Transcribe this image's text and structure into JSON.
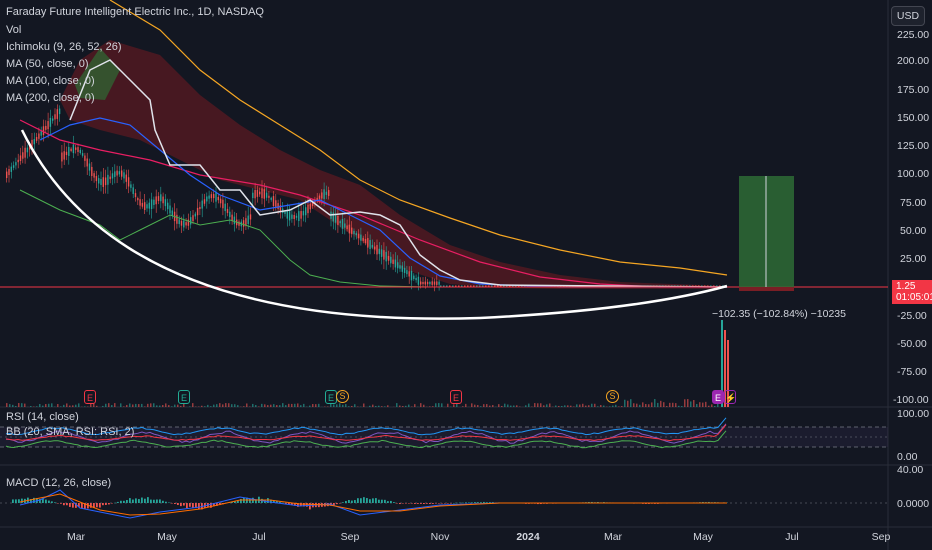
{
  "symbol": {
    "title": "Faraday Future Intelligent Electric Inc., 1D, NASDAQ"
  },
  "indicators": {
    "vol": "Vol",
    "ichimoku": "Ichimoku (9, 26, 52, 26)",
    "ma50": "MA (50, close, 0)",
    "ma100": "MA (100, close, 0)",
    "ma200": "MA (200, close, 0)"
  },
  "currency_button": "USD",
  "price_axis": [
    "225.00",
    "200.00",
    "175.00",
    "150.00",
    "125.00",
    "100.00",
    "75.00",
    "50.00",
    "25.00",
    "-25.00",
    "-50.00",
    "-75.00",
    "-100.00"
  ],
  "last_price": {
    "value": "1.25",
    "countdown": "01:05:01"
  },
  "measure_label": "−102.35 (−102.84%) −10235",
  "events": [
    {
      "type": "E",
      "color": "#f23645"
    },
    {
      "type": "E",
      "color": "#22ab94"
    },
    {
      "type": "E",
      "color": "#22ab94"
    },
    {
      "type": "S",
      "color": "#f5a623"
    },
    {
      "type": "E",
      "color": "#f23645"
    },
    {
      "type": "S",
      "color": "#f5a623"
    },
    {
      "type": "E",
      "color": "#9c27b0"
    },
    {
      "type": "⚡",
      "color": "#9c27b0"
    }
  ],
  "rsi_pane": {
    "title": "RSI (14, close)",
    "bb_title": "BB (20, SMA, RSI: RSI, 2)",
    "axis": [
      "100.00",
      "0.00"
    ]
  },
  "macd_pane": {
    "title": "MACD (12, 26, close)",
    "axis": [
      "40.00",
      "0.0000"
    ]
  },
  "time_axis": [
    "Mar",
    "May",
    "Jul",
    "Sep",
    "Nov",
    "2024",
    "Mar",
    "May",
    "Jul",
    "Sep"
  ],
  "colors": {
    "background": "#131722",
    "price_line": "#f23645",
    "up": "#26a69a",
    "down": "#ef5350",
    "ma50": "#2962ff",
    "ma100": "#e91e63",
    "ma200": "#f5a623",
    "kumo_bear": "#7a1e25",
    "target_box": "#2e6b35"
  }
}
